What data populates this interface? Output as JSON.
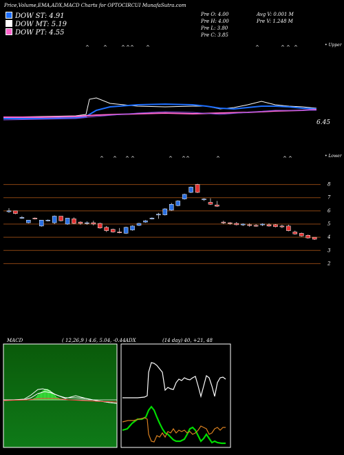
{
  "header": {
    "title": "Price,Volume,EMA,ADX,MACD Charts for OPTOCIRCUI MunafaSutra.com"
  },
  "legend": [
    {
      "label": "DOW ST: 4.91",
      "color": "#1e6fff"
    },
    {
      "label": "DOW MT: 5.19",
      "color": "#ffffff"
    },
    {
      "label": "DOW PT: 4.55",
      "color": "#ff66cc"
    }
  ],
  "stats": {
    "prev_open": "Pre   O: 4.00",
    "prev_high": "Pre   H: 4.00",
    "prev_low": "Pre   L: 3.80",
    "prev_close": "Pre   C: 3.85",
    "avg_volume": "Avg V: 0.001 M",
    "prev_volume": "Pre   V: 1.248 M"
  },
  "labels": {
    "upper": "• Upper",
    "lower": "• Lower",
    "ema_price": "6.45"
  },
  "macd": {
    "label": "MACD",
    "params": "( 12,26,9 ) 4.6, 5.04, -0.44"
  },
  "adx": {
    "label": "ADX",
    "params": "(14  day) 40,  +21,  48"
  },
  "colors": {
    "bull": "#2b6fe0",
    "bear": "#e03030",
    "grid": "#8b4513",
    "macd_bg": "#0a5a0a",
    "adx_bg": "#000080"
  },
  "chart_data": {
    "type": "candlestick",
    "ylim": [
      1.5,
      8.5
    ],
    "y_ticks": [
      8,
      7,
      6,
      5,
      4,
      3,
      2
    ],
    "candles": [
      {
        "o": 5.95,
        "h": 6.2,
        "l": 5.85,
        "c": 6.0
      },
      {
        "o": 6.0,
        "h": 6.0,
        "l": 5.75,
        "c": 5.8
      },
      {
        "o": 5.5,
        "h": 5.6,
        "l": 5.4,
        "c": 5.5
      },
      {
        "o": 5.1,
        "h": 5.3,
        "l": 5.05,
        "c": 5.3
      },
      {
        "o": 5.45,
        "h": 5.5,
        "l": 5.35,
        "c": 5.4
      },
      {
        "o": 4.85,
        "h": 5.3,
        "l": 4.8,
        "c": 5.3
      },
      {
        "o": 5.3,
        "h": 5.35,
        "l": 5.2,
        "c": 5.3
      },
      {
        "o": 5.1,
        "h": 5.65,
        "l": 5.0,
        "c": 5.6
      },
      {
        "o": 5.6,
        "h": 5.6,
        "l": 5.2,
        "c": 5.25
      },
      {
        "o": 5.0,
        "h": 5.45,
        "l": 4.95,
        "c": 5.45
      },
      {
        "o": 5.4,
        "h": 5.5,
        "l": 5.0,
        "c": 5.05
      },
      {
        "o": 5.15,
        "h": 5.2,
        "l": 4.95,
        "c": 5.05
      },
      {
        "o": 5.05,
        "h": 5.2,
        "l": 4.95,
        "c": 5.1
      },
      {
        "o": 5.1,
        "h": 5.25,
        "l": 4.9,
        "c": 5.0
      },
      {
        "o": 5.05,
        "h": 5.1,
        "l": 4.65,
        "c": 4.7
      },
      {
        "o": 4.75,
        "h": 4.85,
        "l": 4.4,
        "c": 4.5
      },
      {
        "o": 4.6,
        "h": 4.65,
        "l": 4.35,
        "c": 4.4
      },
      {
        "o": 4.4,
        "h": 4.7,
        "l": 4.3,
        "c": 4.35
      },
      {
        "o": 4.3,
        "h": 4.8,
        "l": 4.25,
        "c": 4.75
      },
      {
        "o": 4.55,
        "h": 4.9,
        "l": 4.5,
        "c": 4.85
      },
      {
        "o": 4.9,
        "h": 5.1,
        "l": 4.85,
        "c": 5.05
      },
      {
        "o": 5.15,
        "h": 5.3,
        "l": 5.1,
        "c": 5.25
      },
      {
        "o": 5.4,
        "h": 5.5,
        "l": 5.35,
        "c": 5.45
      },
      {
        "o": 5.75,
        "h": 5.85,
        "l": 5.4,
        "c": 5.75
      },
      {
        "o": 5.7,
        "h": 6.2,
        "l": 5.65,
        "c": 6.15
      },
      {
        "o": 6.05,
        "h": 6.6,
        "l": 6.0,
        "c": 6.5
      },
      {
        "o": 6.4,
        "h": 6.8,
        "l": 6.35,
        "c": 6.75
      },
      {
        "o": 6.9,
        "h": 7.3,
        "l": 6.85,
        "c": 7.25
      },
      {
        "o": 7.4,
        "h": 7.85,
        "l": 7.35,
        "c": 7.8
      },
      {
        "o": 8.0,
        "h": 8.05,
        "l": 7.35,
        "c": 7.4
      },
      {
        "o": 6.85,
        "h": 6.95,
        "l": 6.75,
        "c": 6.9
      },
      {
        "o": 6.65,
        "h": 6.95,
        "l": 6.45,
        "c": 6.5
      },
      {
        "o": 6.45,
        "h": 6.75,
        "l": 6.3,
        "c": 6.35
      },
      {
        "o": 5.15,
        "h": 5.25,
        "l": 5.0,
        "c": 5.1
      },
      {
        "o": 5.1,
        "h": 5.15,
        "l": 4.95,
        "c": 5.05
      },
      {
        "o": 5.05,
        "h": 5.15,
        "l": 4.9,
        "c": 4.95
      },
      {
        "o": 4.95,
        "h": 5.05,
        "l": 4.85,
        "c": 5.0
      },
      {
        "o": 4.95,
        "h": 5.05,
        "l": 4.8,
        "c": 4.9
      },
      {
        "o": 4.9,
        "h": 5.0,
        "l": 4.8,
        "c": 4.85
      },
      {
        "o": 4.95,
        "h": 5.05,
        "l": 4.85,
        "c": 5.0
      },
      {
        "o": 4.95,
        "h": 5.05,
        "l": 4.8,
        "c": 4.85
      },
      {
        "o": 4.95,
        "h": 5.0,
        "l": 4.75,
        "c": 4.8
      },
      {
        "o": 4.85,
        "h": 4.95,
        "l": 4.7,
        "c": 4.8
      },
      {
        "o": 4.85,
        "h": 4.95,
        "l": 4.45,
        "c": 4.5
      },
      {
        "o": 4.4,
        "h": 4.5,
        "l": 4.2,
        "c": 4.25
      },
      {
        "o": 4.3,
        "h": 4.35,
        "l": 4.05,
        "c": 4.1
      },
      {
        "o": 4.15,
        "h": 4.2,
        "l": 3.9,
        "c": 3.95
      },
      {
        "o": 4.0,
        "h": 4.0,
        "l": 3.8,
        "c": 3.85
      }
    ]
  }
}
